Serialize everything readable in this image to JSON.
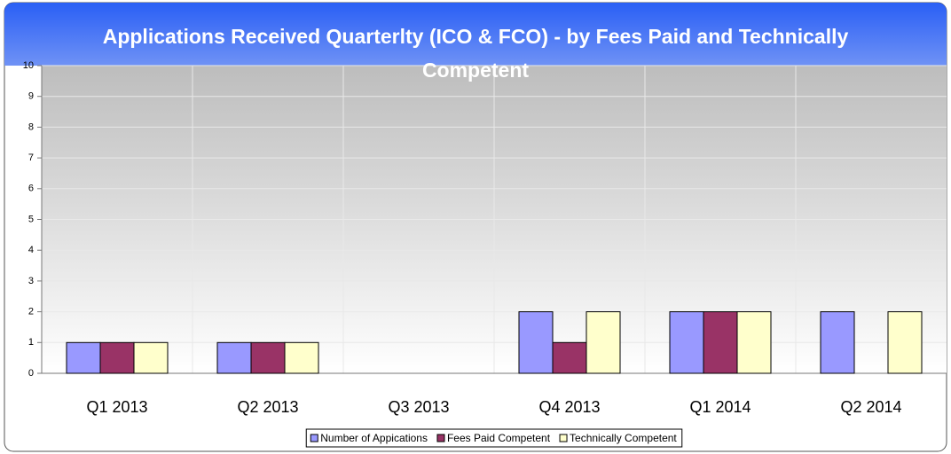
{
  "chart_data": {
    "type": "bar",
    "title": "Applications Received Quarterlty (ICO & FCO) - by Fees Paid and Technically Competent",
    "categories": [
      "Q1 2013",
      "Q2 2013",
      "Q3 2013",
      "Q4 2013",
      "Q1 2014",
      "Q2 2014"
    ],
    "series": [
      {
        "name": "Number of Appications",
        "color": "#9999ff",
        "values": [
          1,
          1,
          0,
          2,
          2,
          2
        ]
      },
      {
        "name": "Fees Paid Competent",
        "color": "#993366",
        "values": [
          1,
          1,
          0,
          1,
          2,
          0
        ]
      },
      {
        "name": "Technically Competent",
        "color": "#ffffcc",
        "values": [
          1,
          1,
          0,
          2,
          2,
          2
        ]
      }
    ],
    "ylim": [
      0,
      10
    ],
    "yticks": [
      0,
      1,
      2,
      3,
      4,
      5,
      6,
      7,
      8,
      9,
      10
    ],
    "grid": true,
    "legend": "bottom"
  }
}
